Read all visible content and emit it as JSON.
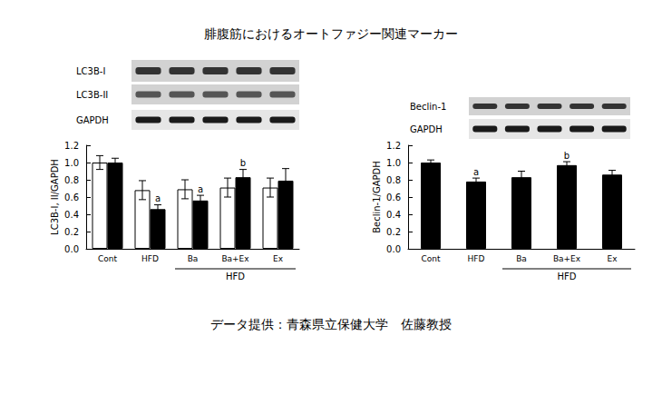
{
  "title": "腓腹筋におけるオートファジー関連マーカー",
  "source": "データ提供：青森県立保健大学　佐藤教授",
  "chart_data": [
    {
      "type": "bar",
      "y_label": "LC3B-I, II/GAPDH",
      "categories": [
        "Cont",
        "HFD",
        "Ba",
        "Ba+Ex",
        "Ex"
      ],
      "group_label": {
        "label": "HFD",
        "categories": [
          "Ba",
          "Ba+Ex",
          "Ex"
        ]
      },
      "blot_labels": [
        "LC3B-I",
        "LC3B-II",
        "GAPDH"
      ],
      "series": [
        {
          "name": "LC3B-I",
          "color": "#ffffff",
          "values": [
            1.0,
            0.68,
            0.69,
            0.71,
            0.71
          ],
          "errors": [
            0.08,
            0.11,
            0.11,
            0.11,
            0.11
          ],
          "annotations": [
            null,
            null,
            null,
            null,
            null
          ]
        },
        {
          "name": "LC3B-II",
          "color": "#000000",
          "values": [
            1.0,
            0.46,
            0.56,
            0.83,
            0.79
          ],
          "errors": [
            0.05,
            0.05,
            0.06,
            0.09,
            0.14
          ],
          "annotations": [
            null,
            "a",
            "a",
            "b",
            null
          ]
        }
      ],
      "ylim": [
        0,
        1.2
      ],
      "yticks": [
        {
          "value": 0,
          "label": "0.0"
        },
        {
          "value": 0.2,
          "label": "0.2"
        },
        {
          "value": 0.4,
          "label": "0.4"
        },
        {
          "value": 0.6,
          "label": "0.6"
        },
        {
          "value": 0.8,
          "label": "0.8"
        },
        {
          "value": 1.0,
          "label": "1.0"
        },
        {
          "value": 1.2,
          "label": "1.2"
        }
      ],
      "grid": false
    },
    {
      "type": "bar",
      "y_label": "Beclin-1/GAPDH",
      "categories": [
        "Cont",
        "HFD",
        "Ba",
        "Ba+Ex",
        "Ex"
      ],
      "group_label": {
        "label": "HFD",
        "categories": [
          "Ba",
          "Ba+Ex",
          "Ex"
        ]
      },
      "blot_labels": [
        "Beclin-1",
        "GAPDH"
      ],
      "series": [
        {
          "name": "Beclin-1",
          "color": "#000000",
          "values": [
            1.0,
            0.78,
            0.83,
            0.97,
            0.86
          ],
          "errors": [
            0.03,
            0.04,
            0.07,
            0.04,
            0.05
          ],
          "annotations": [
            null,
            "a",
            null,
            "b",
            null
          ]
        }
      ],
      "ylim": [
        0,
        1.2
      ],
      "yticks": [
        {
          "value": 0,
          "label": "0.0"
        },
        {
          "value": 0.2,
          "label": "0.2"
        },
        {
          "value": 0.4,
          "label": "0.4"
        },
        {
          "value": 0.6,
          "label": "0.6"
        },
        {
          "value": 0.8,
          "label": "0.8"
        },
        {
          "value": 1.0,
          "label": "1.0"
        },
        {
          "value": 1.2,
          "label": "1.2"
        }
      ],
      "grid": false
    }
  ]
}
